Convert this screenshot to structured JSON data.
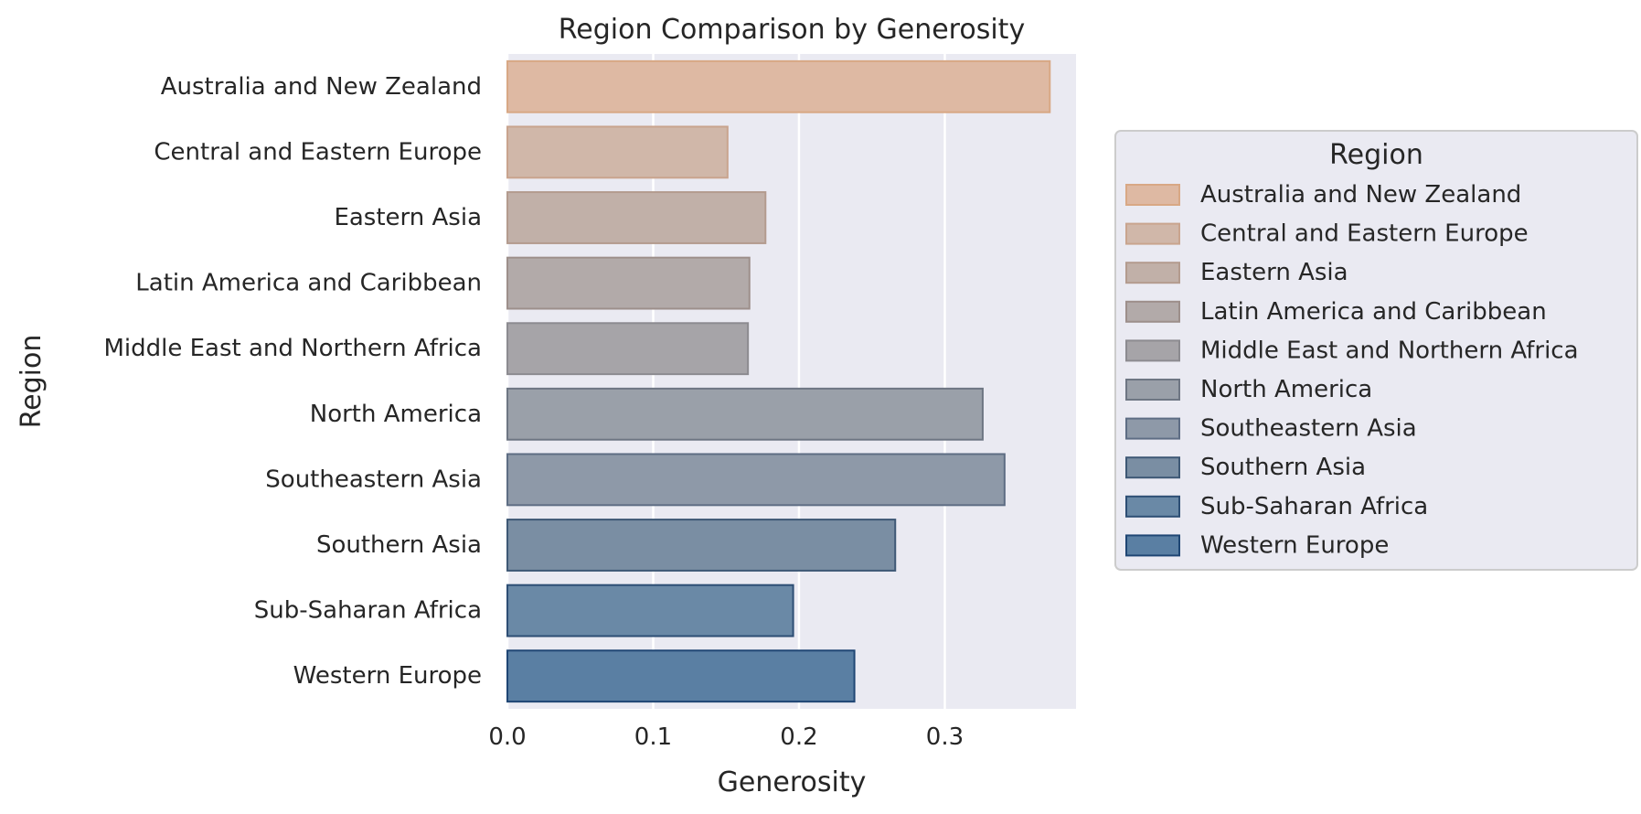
{
  "chart_data": {
    "type": "bar",
    "orientation": "horizontal",
    "title": "Region Comparison by Generosity",
    "xlabel": "Generosity",
    "ylabel": "Region",
    "xlim": [
      0.0,
      0.39
    ],
    "xticks": [
      0.0,
      0.1,
      0.2,
      0.3
    ],
    "xtick_labels": [
      "0.0",
      "0.1",
      "0.2",
      "0.3"
    ],
    "grid": true,
    "legend": {
      "title": "Region",
      "placement": "right"
    },
    "categories": [
      "Australia and New Zealand",
      "Central and Eastern Europe",
      "Eastern Asia",
      "Latin America and Caribbean",
      "Middle East and Northern Africa",
      "North America",
      "Southeastern Asia",
      "Southern Asia",
      "Sub-Saharan Africa",
      "Western Europe"
    ],
    "values": [
      0.372,
      0.151,
      0.177,
      0.166,
      0.165,
      0.326,
      0.341,
      0.266,
      0.196,
      0.238
    ],
    "colors": [
      {
        "fill": "#deb9a3",
        "stroke": "#d8a885"
      },
      {
        "fill": "#d0b7a9",
        "stroke": "#c9a48e"
      },
      {
        "fill": "#c1b0a8",
        "stroke": "#b39b8e"
      },
      {
        "fill": "#b2aaa9",
        "stroke": "#9d8f8b"
      },
      {
        "fill": "#a6a4a8",
        "stroke": "#8c8b90"
      },
      {
        "fill": "#9aa0a9",
        "stroke": "#6e7683"
      },
      {
        "fill": "#8e99a8",
        "stroke": "#5e6d84"
      },
      {
        "fill": "#7a8ea3",
        "stroke": "#3e5875"
      },
      {
        "fill": "#6a89a6",
        "stroke": "#2d4e74"
      },
      {
        "fill": "#5a7fa3",
        "stroke": "#1f4674"
      }
    ],
    "plot_background": "#eaeaf2",
    "grid_color": "#ffffff"
  }
}
